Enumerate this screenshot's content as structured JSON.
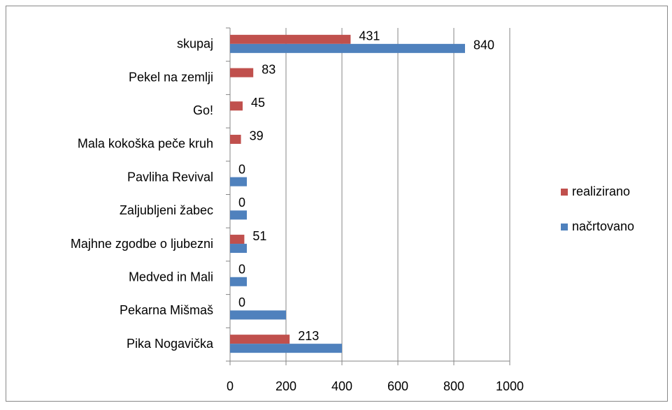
{
  "chart_data": {
    "type": "bar",
    "orientation": "horizontal",
    "categories": [
      "skupaj",
      "Pekel na zemlji",
      "Go!",
      "Mala kokoška peče kruh",
      "Pavliha Revival",
      "Zaljubljeni žabec",
      "Majhne zgodbe o ljubezni",
      "Medved in Mali",
      "Pekarna Mišmaš",
      "Pika Nogavička"
    ],
    "series": [
      {
        "name": "realizirano",
        "color": "#c0504d",
        "values": [
          431,
          83,
          45,
          39,
          0,
          0,
          51,
          0,
          0,
          213
        ]
      },
      {
        "name": "načrtovano",
        "color": "#4f81bd",
        "values": [
          840,
          0,
          0,
          0,
          60,
          60,
          60,
          60,
          200,
          400
        ],
        "value_labels": [
          "840",
          null,
          null,
          null,
          null,
          null,
          null,
          null,
          null,
          null
        ]
      }
    ],
    "xlim": [
      0,
      1000
    ],
    "xticks": [
      0,
      200,
      400,
      600,
      800,
      1000
    ],
    "grid": true,
    "legend": "right"
  }
}
